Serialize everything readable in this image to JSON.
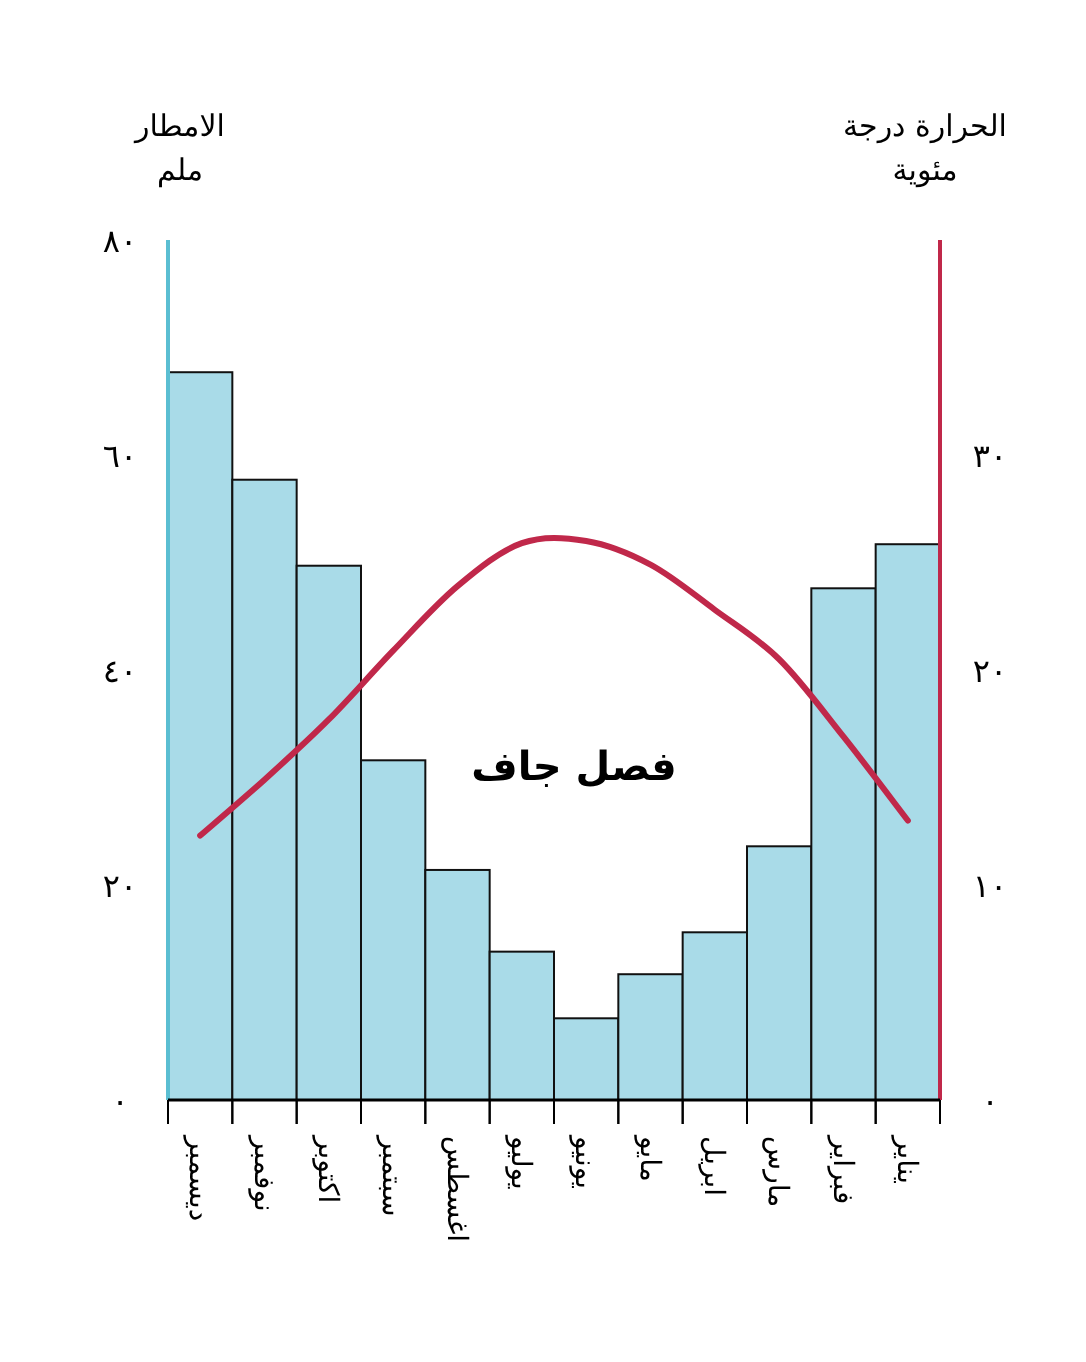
{
  "chart_data": {
    "type": "bar",
    "ylabel": "الامطار ملم",
    "y2label": "الحرارة درجة مئوية",
    "categories": [
      "ديسمبر",
      "نوفمبر",
      "اكتوبر",
      "سبتمبر",
      "اغسطس",
      "يوليو",
      "يونيو",
      "مايو",
      "ابريل",
      "مارس",
      "فبراير",
      "يناير"
    ],
    "series": [
      {
        "color": "#a9dbe8",
        "values": [
          67.7,
          57.7,
          49.7,
          31.6,
          21.4,
          13.8,
          7.6,
          11.7,
          15.6,
          23.6,
          47.6,
          51.7
        ]
      },
      {
        "type": "line",
        "axis": "y2",
        "color": "#c0284a",
        "values": [
          12.3,
          14.9,
          17.7,
          20.9,
          23.9,
          25.9,
          26.0,
          24.9,
          22.8,
          20.5,
          16.9,
          13.0
        ]
      }
    ],
    "ylim": [
      0,
      80
    ],
    "yticks": [
      {
        "value": 0,
        "label": "٠"
      },
      {
        "value": 20,
        "label": "٢٠"
      },
      {
        "value": 40,
        "label": "٤٠"
      },
      {
        "value": 60,
        "label": "٦٠"
      },
      {
        "value": 80,
        "label": "٨٠"
      }
    ],
    "y2lim": [
      0,
      40
    ],
    "y2ticks": [
      {
        "value": 0,
        "label": "٠"
      },
      {
        "value": 10,
        "label": "١٠"
      },
      {
        "value": 20,
        "label": "٢٠"
      },
      {
        "value": 30,
        "label": "٣٠"
      }
    ],
    "marker": "none",
    "annotations": [
      "فصل جاف"
    ]
  }
}
